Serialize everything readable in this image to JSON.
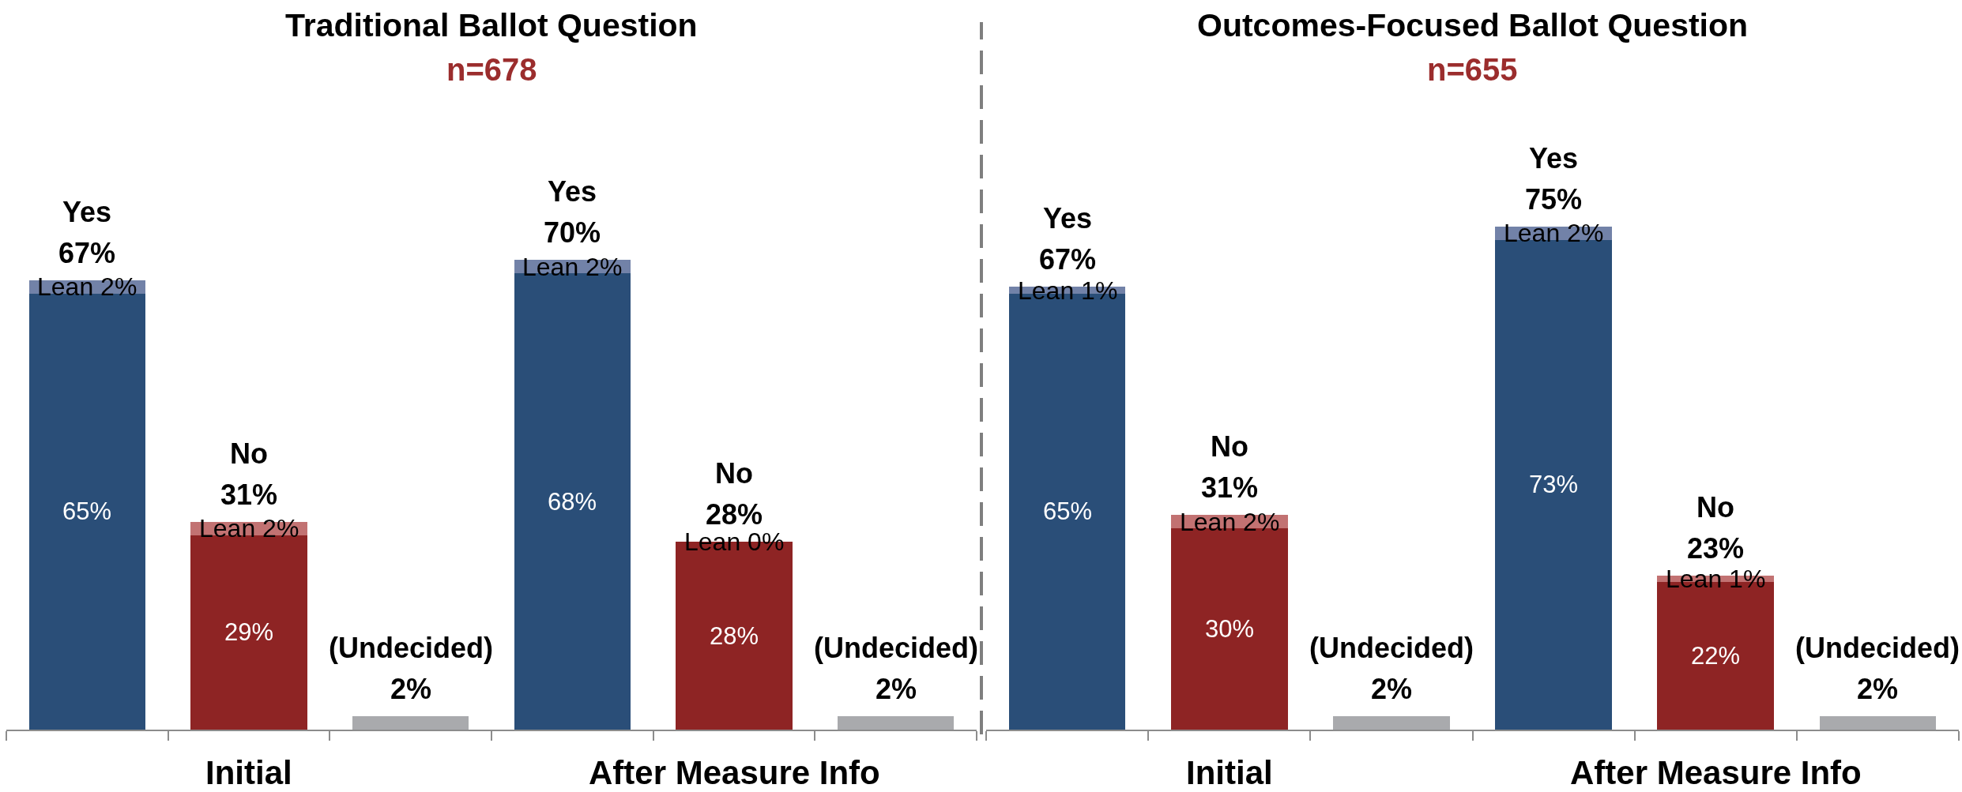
{
  "chart_data": [
    {
      "type": "bar",
      "stacked": true,
      "title": "Traditional Ballot Question",
      "subtitle": "n=678",
      "categories": [
        "Yes",
        "No",
        "(Undecided)",
        "Yes",
        "No",
        "(Undecided)"
      ],
      "series": [
        {
          "colors": [
            "#2a4e78",
            "#8e2424",
            "#a9aaad",
            "#2a4e78",
            "#8e2424",
            "#a9aaad"
          ],
          "values": [
            65,
            29,
            2,
            68,
            28,
            2
          ],
          "value_labels": [
            "65%",
            "29%",
            null,
            "68%",
            "28%",
            null
          ]
        },
        {
          "colors": [
            "#7282a8",
            "#c27272",
            null,
            "#7282a8",
            "#c27272",
            null
          ],
          "values": [
            2,
            2,
            null,
            2,
            0,
            null
          ],
          "value_labels": [
            "Lean 2%",
            "Lean 2%",
            null,
            "Lean 2%",
            "Lean 0%",
            null
          ]
        }
      ],
      "totals": [
        "67%",
        "31%",
        "2%",
        "70%",
        "28%",
        "2%"
      ],
      "annotations": [
        "Initial",
        "After Measure Info"
      ],
      "tick_labels": "x"
    },
    {
      "type": "bar",
      "stacked": true,
      "title": "Outcomes-Focused Ballot Question",
      "subtitle": "n=655",
      "categories": [
        "Yes",
        "No",
        "(Undecided)",
        "Yes",
        "No",
        "(Undecided)"
      ],
      "series": [
        {
          "colors": [
            "#2a4e78",
            "#8e2424",
            "#a9aaad",
            "#2a4e78",
            "#8e2424",
            "#a9aaad"
          ],
          "values": [
            65,
            30,
            2,
            73,
            22,
            2
          ],
          "value_labels": [
            "65%",
            "30%",
            null,
            "73%",
            "22%",
            null
          ]
        },
        {
          "colors": [
            "#7282a8",
            "#c27272",
            null,
            "#7282a8",
            "#c27272",
            null
          ],
          "values": [
            1,
            2,
            null,
            2,
            1,
            null
          ],
          "value_labels": [
            "Lean 1%",
            "Lean 2%",
            null,
            "Lean 2%",
            "Lean 1%",
            null
          ]
        }
      ],
      "totals": [
        "67%",
        "31%",
        "2%",
        "75%",
        "23%",
        "2%"
      ],
      "annotations": [
        "Initial",
        "After Measure Info"
      ],
      "tick_labels": "x"
    }
  ]
}
